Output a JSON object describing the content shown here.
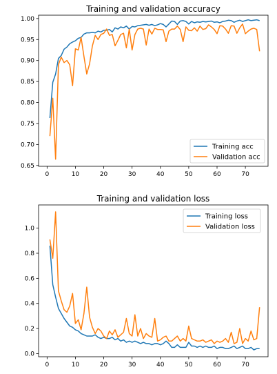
{
  "chart_data": [
    {
      "type": "line",
      "title": "Training and validation accuracy",
      "xlabel": "",
      "ylabel": "",
      "xlim": [
        -3,
        78
      ],
      "ylim": [
        0.648,
        1.008
      ],
      "xticks": [
        0,
        10,
        20,
        30,
        40,
        50,
        60,
        70
      ],
      "yticks": [
        0.65,
        0.7,
        0.75,
        0.8,
        0.85,
        0.9,
        0.95,
        1.0
      ],
      "ytick_labels": [
        "0.65",
        "0.70",
        "0.75",
        "0.80",
        "0.85",
        "0.90",
        "0.95",
        "1.00"
      ],
      "legend_position": "lower right",
      "grid": false,
      "series": [
        {
          "name": "Training acc",
          "color": "#1f77b4",
          "x": [
            1,
            2,
            3,
            4,
            5,
            6,
            7,
            8,
            9,
            10,
            11,
            12,
            13,
            14,
            15,
            16,
            17,
            18,
            19,
            20,
            21,
            22,
            23,
            24,
            25,
            26,
            27,
            28,
            29,
            30,
            31,
            32,
            33,
            34,
            35,
            36,
            37,
            38,
            39,
            40,
            41,
            42,
            43,
            44,
            45,
            46,
            47,
            48,
            49,
            50,
            51,
            52,
            53,
            54,
            55,
            56,
            57,
            58,
            59,
            60,
            61,
            62,
            63,
            64,
            65,
            66,
            67,
            68,
            69,
            70,
            71,
            72,
            73,
            74,
            75
          ],
          "y": [
            0.763,
            0.848,
            0.868,
            0.905,
            0.912,
            0.927,
            0.932,
            0.94,
            0.944,
            0.947,
            0.953,
            0.955,
            0.963,
            0.966,
            0.966,
            0.967,
            0.966,
            0.97,
            0.968,
            0.972,
            0.972,
            0.974,
            0.968,
            0.978,
            0.975,
            0.98,
            0.978,
            0.982,
            0.975,
            0.981,
            0.98,
            0.983,
            0.984,
            0.985,
            0.986,
            0.984,
            0.986,
            0.983,
            0.985,
            0.988,
            0.986,
            0.98,
            0.987,
            0.994,
            0.993,
            0.986,
            0.994,
            0.995,
            0.993,
            0.987,
            0.993,
            0.99,
            0.992,
            0.991,
            0.993,
            0.992,
            0.993,
            0.994,
            0.991,
            0.992,
            0.99,
            0.993,
            0.994,
            0.996,
            0.995,
            0.991,
            0.994,
            0.996,
            0.993,
            0.995,
            0.997,
            0.995,
            0.996,
            0.997,
            0.995
          ]
        },
        {
          "name": "Validation acc",
          "color": "#ff7f0e",
          "x": [
            1,
            2,
            3,
            4,
            5,
            6,
            7,
            8,
            9,
            10,
            11,
            12,
            13,
            14,
            15,
            16,
            17,
            18,
            19,
            20,
            21,
            22,
            23,
            24,
            25,
            26,
            27,
            28,
            29,
            30,
            31,
            32,
            33,
            34,
            35,
            36,
            37,
            38,
            39,
            40,
            41,
            42,
            43,
            44,
            45,
            46,
            47,
            48,
            49,
            50,
            51,
            52,
            53,
            54,
            55,
            56,
            57,
            58,
            59,
            60,
            61,
            62,
            63,
            64,
            65,
            66,
            67,
            68,
            69,
            70,
            71,
            72,
            73,
            74,
            75
          ],
          "y": [
            0.72,
            0.81,
            0.665,
            0.89,
            0.908,
            0.895,
            0.9,
            0.89,
            0.84,
            0.928,
            0.925,
            0.955,
            0.91,
            0.868,
            0.892,
            0.935,
            0.96,
            0.95,
            0.962,
            0.965,
            0.975,
            0.96,
            0.962,
            0.935,
            0.948,
            0.962,
            0.965,
            0.93,
            0.975,
            0.925,
            0.962,
            0.975,
            0.977,
            0.975,
            0.937,
            0.975,
            0.963,
            0.977,
            0.974,
            0.974,
            0.973,
            0.945,
            0.97,
            0.975,
            0.975,
            0.982,
            0.974,
            0.945,
            0.98,
            0.972,
            0.971,
            0.978,
            0.97,
            0.982,
            0.974,
            0.976,
            0.985,
            0.98,
            0.974,
            0.964,
            0.983,
            0.982,
            0.975,
            0.965,
            0.983,
            0.982,
            0.965,
            0.978,
            0.987,
            0.964,
            0.97,
            0.975,
            0.977,
            0.974,
            0.922
          ]
        }
      ]
    },
    {
      "type": "line",
      "title": "Training and validation loss",
      "xlabel": "",
      "ylabel": "",
      "xlim": [
        -3,
        78
      ],
      "ylim": [
        -0.025,
        1.185
      ],
      "xticks": [
        0,
        10,
        20,
        30,
        40,
        50,
        60,
        70
      ],
      "yticks": [
        0.0,
        0.2,
        0.4,
        0.6,
        0.8,
        1.0
      ],
      "ytick_labels": [
        "0.0",
        "0.2",
        "0.4",
        "0.6",
        "0.8",
        "1.0"
      ],
      "legend_position": "upper right",
      "grid": false,
      "series": [
        {
          "name": "Training loss",
          "color": "#1f77b4",
          "x": [
            1,
            2,
            3,
            4,
            5,
            6,
            7,
            8,
            9,
            10,
            11,
            12,
            13,
            14,
            15,
            16,
            17,
            18,
            19,
            20,
            21,
            22,
            23,
            24,
            25,
            26,
            27,
            28,
            29,
            30,
            31,
            32,
            33,
            34,
            35,
            36,
            37,
            38,
            39,
            40,
            41,
            42,
            43,
            44,
            45,
            46,
            47,
            48,
            49,
            50,
            51,
            52,
            53,
            54,
            55,
            56,
            57,
            58,
            59,
            60,
            61,
            62,
            63,
            64,
            65,
            66,
            67,
            68,
            69,
            70,
            71,
            72,
            73,
            74,
            75
          ],
          "y": [
            0.86,
            0.55,
            0.45,
            0.36,
            0.32,
            0.28,
            0.25,
            0.22,
            0.21,
            0.19,
            0.18,
            0.16,
            0.15,
            0.14,
            0.14,
            0.14,
            0.15,
            0.13,
            0.12,
            0.13,
            0.12,
            0.12,
            0.13,
            0.11,
            0.12,
            0.1,
            0.11,
            0.09,
            0.1,
            0.09,
            0.1,
            0.09,
            0.08,
            0.09,
            0.08,
            0.08,
            0.07,
            0.08,
            0.08,
            0.07,
            0.08,
            0.1,
            0.08,
            0.05,
            0.05,
            0.07,
            0.05,
            0.05,
            0.05,
            0.09,
            0.06,
            0.06,
            0.05,
            0.06,
            0.05,
            0.06,
            0.05,
            0.05,
            0.06,
            0.04,
            0.05,
            0.05,
            0.04,
            0.04,
            0.05,
            0.06,
            0.04,
            0.05,
            0.06,
            0.04,
            0.04,
            0.05,
            0.03,
            0.04,
            0.04
          ]
        },
        {
          "name": "Validation loss",
          "color": "#ff7f0e",
          "x": [
            1,
            2,
            3,
            4,
            5,
            6,
            7,
            8,
            9,
            10,
            11,
            12,
            13,
            14,
            15,
            16,
            17,
            18,
            19,
            20,
            21,
            22,
            23,
            24,
            25,
            26,
            27,
            28,
            29,
            30,
            31,
            32,
            33,
            34,
            35,
            36,
            37,
            38,
            39,
            40,
            41,
            42,
            43,
            44,
            45,
            46,
            47,
            48,
            49,
            50,
            51,
            52,
            53,
            54,
            55,
            56,
            57,
            58,
            59,
            60,
            61,
            62,
            63,
            64,
            65,
            66,
            67,
            68,
            69,
            70,
            71,
            72,
            73,
            74,
            75
          ],
          "y": [
            0.91,
            0.76,
            1.13,
            0.5,
            0.42,
            0.35,
            0.33,
            0.38,
            0.48,
            0.24,
            0.27,
            0.19,
            0.32,
            0.53,
            0.29,
            0.21,
            0.16,
            0.2,
            0.18,
            0.14,
            0.12,
            0.18,
            0.15,
            0.19,
            0.13,
            0.15,
            0.17,
            0.28,
            0.16,
            0.14,
            0.31,
            0.14,
            0.2,
            0.12,
            0.16,
            0.14,
            0.13,
            0.28,
            0.1,
            0.11,
            0.13,
            0.14,
            0.1,
            0.1,
            0.12,
            0.14,
            0.1,
            0.12,
            0.1,
            0.22,
            0.12,
            0.11,
            0.1,
            0.1,
            0.11,
            0.09,
            0.1,
            0.11,
            0.08,
            0.1,
            0.09,
            0.1,
            0.12,
            0.09,
            0.17,
            0.08,
            0.09,
            0.2,
            0.08,
            0.12,
            0.1,
            0.18,
            0.11,
            0.12,
            0.37
          ]
        }
      ]
    }
  ]
}
